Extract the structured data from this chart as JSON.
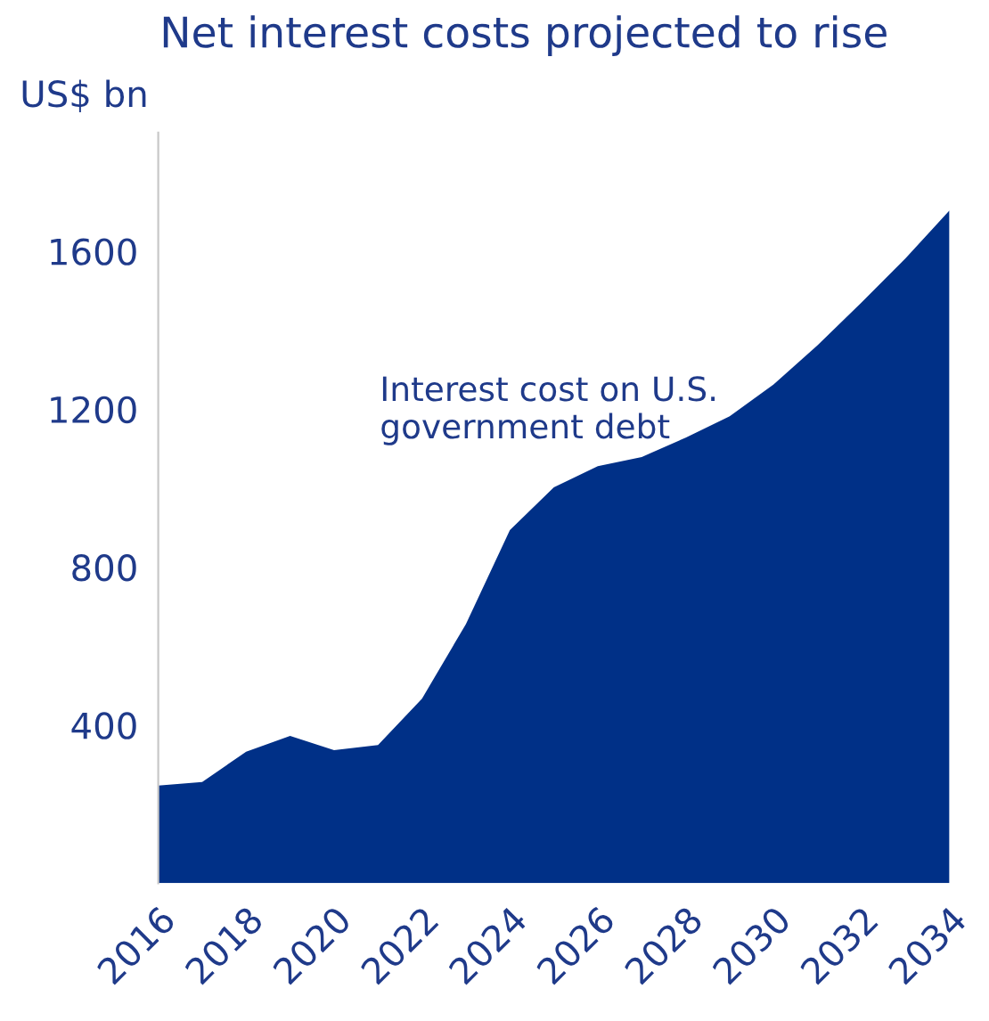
{
  "chart_data": {
    "type": "area",
    "title": "Net interest costs projected to rise",
    "ylabel": "US$ bn",
    "x": [
      2016,
      2017,
      2018,
      2019,
      2020,
      2021,
      2022,
      2023,
      2024,
      2025,
      2026,
      2027,
      2028,
      2029,
      2030,
      2031,
      2032,
      2033,
      2034
    ],
    "series": [
      {
        "name": "Interest cost on U.S.\ngovernment debt",
        "color": "#003087",
        "values": [
          247,
          256,
          333,
          373,
          337,
          350,
          467,
          656,
          894,
          1002,
          1056,
          1079,
          1128,
          1182,
          1263,
          1362,
          1470,
          1582,
          1703
        ]
      }
    ],
    "xlim": [
      2016,
      2034
    ],
    "xticks": [
      2016,
      2018,
      2020,
      2022,
      2024,
      2026,
      2028,
      2030,
      2032,
      2034
    ],
    "ylim": [
      0,
      1900
    ],
    "yticks": [
      400,
      800,
      1200,
      1600
    ],
    "grid": false,
    "legend": false
  }
}
